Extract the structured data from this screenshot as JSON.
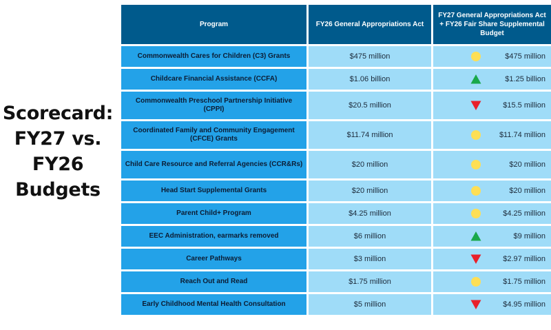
{
  "side_title": [
    "Scorecard:",
    "FY27 vs.",
    "FY26",
    "Budgets"
  ],
  "table": {
    "headers": {
      "program": "Program",
      "fy26": "FY26 General Appropriations Act",
      "fy27": "FY27 General Appropriations Act + FY26 Fair Share Supplemental Budget"
    },
    "rows": [
      {
        "program": "Commonwealth Cares for Children (C3) Grants",
        "fy26": "$475 million",
        "fy27": "$475 million",
        "indicator": "yellow-circle-icon"
      },
      {
        "program": "Childcare Financial Assistance (CCFA)",
        "fy26": "$1.06 billion",
        "fy27": "$1.25 billion",
        "indicator": "green-up-triangle-icon"
      },
      {
        "program": "Commonwealth Preschool Partnership Initiative (CPPI)",
        "fy26": "$20.5 million",
        "fy27": "$15.5 million",
        "indicator": "red-down-triangle-icon"
      },
      {
        "program": "Coordinated Family and Community Engagement (CFCE) Grants",
        "fy26": "$11.74 million",
        "fy27": "$11.74 million",
        "indicator": "yellow-circle-icon"
      },
      {
        "program": "Child Care Resource and Referral Agencies (CCR&Rs)",
        "fy26": "$20 million",
        "fy27": "$20 million",
        "indicator": "yellow-circle-icon"
      },
      {
        "program": "Head Start Supplemental Grants",
        "fy26": "$20 million",
        "fy27": "$20 million",
        "indicator": "yellow-circle-icon"
      },
      {
        "program": "Parent Child+ Program",
        "fy26": "$4.25 million",
        "fy27": "$4.25 million",
        "indicator": "yellow-circle-icon"
      },
      {
        "program": "EEC Administration, earmarks removed",
        "fy26": "$6 million",
        "fy27": "$9 million",
        "indicator": "green-up-triangle-icon"
      },
      {
        "program": "Career Pathways",
        "fy26": "$3 million",
        "fy27": "$2.97 million",
        "indicator": "red-down-triangle-icon"
      },
      {
        "program": "Reach Out and Read",
        "fy26": "$1.75 million",
        "fy27": "$1.75 million",
        "indicator": "yellow-circle-icon"
      },
      {
        "program": "Early Childhood Mental Health Consultation",
        "fy26": "$5 million",
        "fy27": "$4.95 million",
        "indicator": "red-down-triangle-icon"
      }
    ]
  },
  "colors": {
    "header_bg": "#005a8c",
    "program_bg": "#23a2e8",
    "value_bg": "#9fdcf8",
    "yellow": "#fedf55",
    "green": "#19a84a",
    "red": "#e8202a"
  }
}
